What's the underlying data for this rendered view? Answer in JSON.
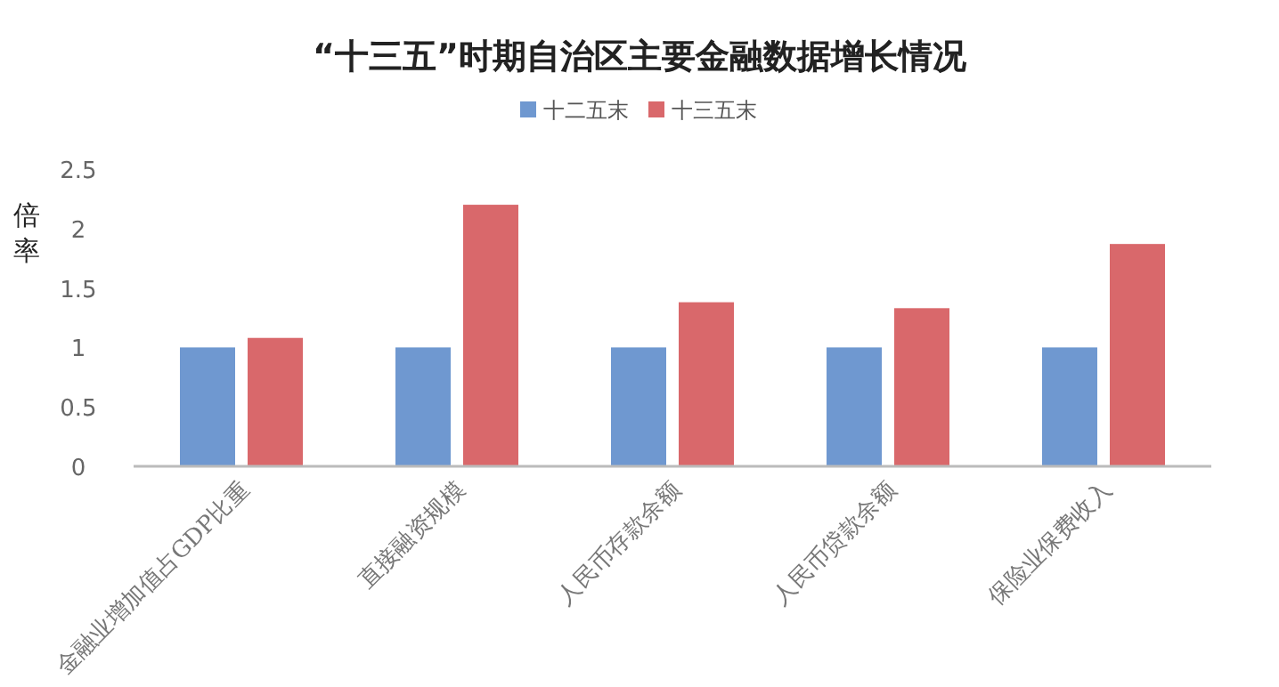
{
  "chart_data": {
    "type": "bar",
    "title": "“十三五”时期自治区主要金融数据增长情况",
    "ylabel": "倍率",
    "categories": [
      "金融业增加值占GDP比重",
      "直接融资规模",
      "人民币存款余额",
      "人民币贷款余额",
      "保险业保费收入"
    ],
    "series": [
      {
        "name": "十二五末",
        "color": "#6f98d0",
        "values": [
          1,
          1,
          1,
          1,
          1
        ]
      },
      {
        "name": "十三五末",
        "color": "#d9686b",
        "values": [
          1.08,
          2.2,
          1.38,
          1.33,
          1.87
        ]
      }
    ],
    "ylim": [
      0,
      2.5
    ],
    "yticks": [
      0,
      0.5,
      1,
      1.5,
      2,
      2.5
    ],
    "grid": false,
    "legend": "top"
  }
}
